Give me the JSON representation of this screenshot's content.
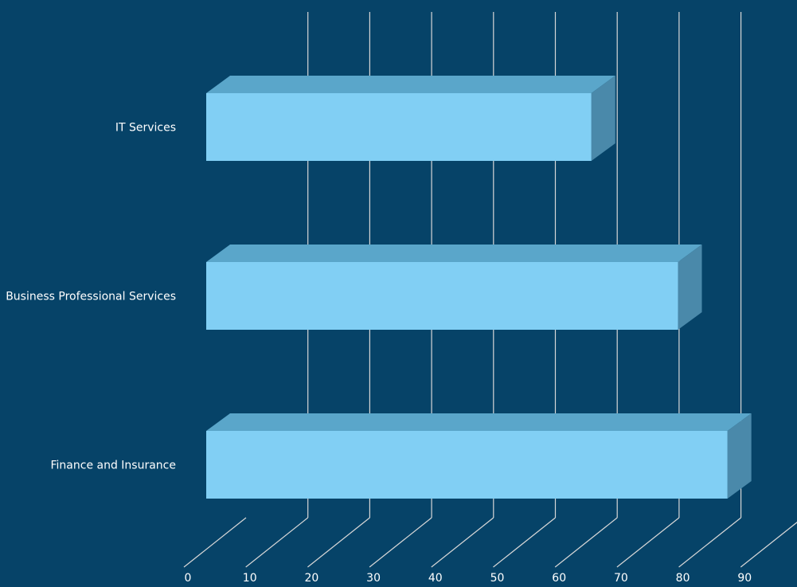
{
  "chart_data": {
    "type": "bar",
    "orientation": "horizontal",
    "style": "3d",
    "categories": [
      "IT Services",
      "Business Professional Services",
      "Finance and Insurance"
    ],
    "values": [
      62,
      76,
      84
    ],
    "x_ticks": [
      "0",
      "10",
      "20",
      "30",
      "40",
      "50",
      "60",
      "70",
      "80",
      "90"
    ],
    "xlim": [
      0,
      100
    ],
    "title": "",
    "xlabel": "",
    "ylabel": "",
    "grid": true,
    "legend": "none",
    "colors": {
      "background": "#064368",
      "bar_front": "#81cff4",
      "bar_top": "#5aa6ca",
      "bar_side": "#4a89aa",
      "grid": "#d7d7d7",
      "text": "#ffffff"
    }
  }
}
